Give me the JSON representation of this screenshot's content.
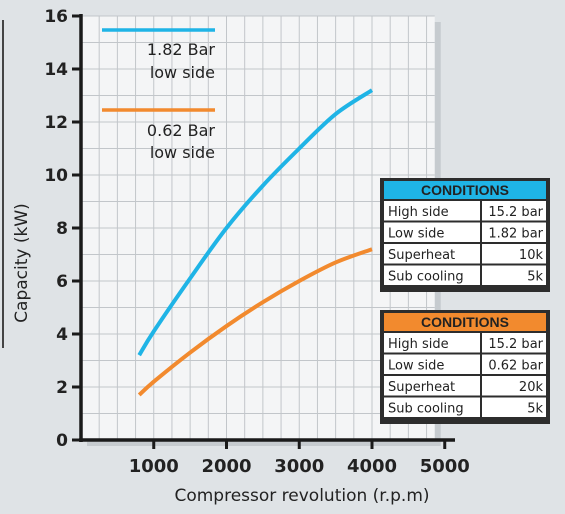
{
  "chart_data": {
    "type": "line",
    "xlabel": "Compressor revolution (r.p.m)",
    "ylabel": "Capacity (kW)",
    "xlim": [
      0,
      5000
    ],
    "ylim": [
      0,
      16
    ],
    "x_ticks": [
      "1000",
      "2000",
      "3000",
      "4000",
      "5000"
    ],
    "y_ticks": [
      "0",
      "2",
      "4",
      "6",
      "8",
      "10",
      "12",
      "14",
      "16"
    ],
    "grid": true,
    "legend_position": "top-left",
    "series": [
      {
        "name": "1.82 Bar low side",
        "legend_lines": [
          "1.82 Bar",
          "low side"
        ],
        "color": "#1fb4e6",
        "x": [
          800,
          1000,
          1500,
          2000,
          2500,
          3000,
          3500,
          4000
        ],
        "y": [
          3.2,
          4.1,
          6.1,
          8.0,
          9.6,
          11.0,
          12.3,
          13.2
        ]
      },
      {
        "name": "0.62 Bar low side",
        "legend_lines": [
          "0.62 Bar",
          "low side"
        ],
        "color": "#f28a2e",
        "x": [
          800,
          1000,
          1500,
          2000,
          2500,
          3000,
          3500,
          4000
        ],
        "y": [
          1.7,
          2.2,
          3.3,
          4.3,
          5.2,
          6.0,
          6.7,
          7.2
        ]
      }
    ]
  },
  "conditions": [
    {
      "title": "CONDITIONS",
      "color": "#1fb4e6",
      "rows": [
        [
          "High side",
          "15.2 bar"
        ],
        [
          "Low side",
          "1.82 bar"
        ],
        [
          "Superheat",
          "10k"
        ],
        [
          "Sub cooling",
          "5k"
        ]
      ]
    },
    {
      "title": "CONDITIONS",
      "color": "#f28a2e",
      "rows": [
        [
          "High side",
          "15.2 bar"
        ],
        [
          "Low side",
          "0.62 bar"
        ],
        [
          "Superheat",
          "20k"
        ],
        [
          "Sub cooling",
          "5k"
        ]
      ]
    }
  ]
}
